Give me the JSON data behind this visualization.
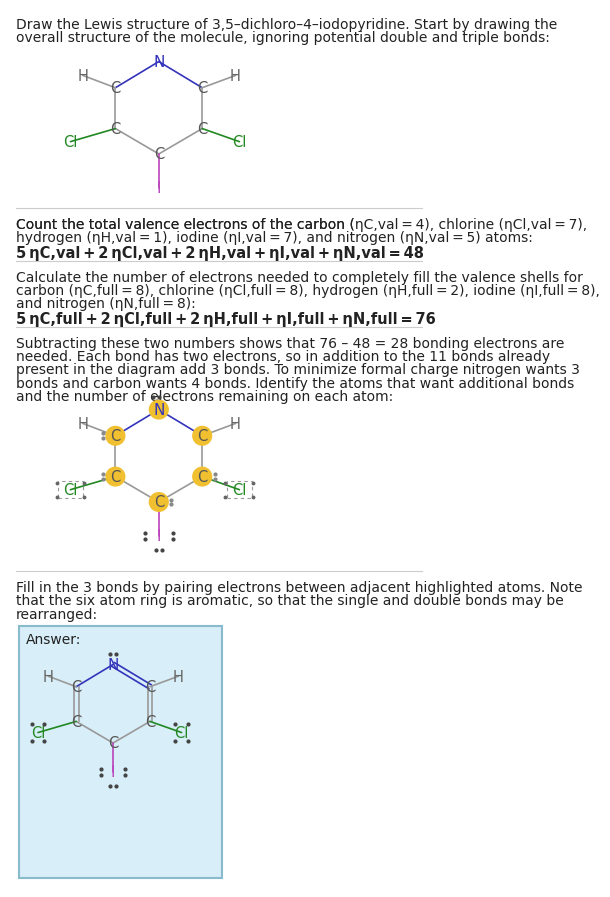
{
  "bg_color": "#ffffff",
  "text_color": "#222222",
  "bond_color": "#999999",
  "N_color": "#3333bb",
  "Cl_color": "#228822",
  "I_color": "#bb44bb",
  "C_color": "#555555",
  "H_color": "#666666",
  "highlight_color": "#f0c030",
  "answer_box_facecolor": "#d8eef8",
  "answer_box_edgecolor": "#88bbcc",
  "divider_color": "#cccccc",
  "dot_color": "#444444",
  "s1_lines": [
    "Draw the Lewis structure of 3,5–dichloro–4–iodopyridine. Start by drawing the",
    "overall structure of the molecule, ignoring potential double and triple bonds:"
  ],
  "s2_lines": [
    "Count the total valence electrons of the carbon (n_{C,val} = 4), chlorine (n_{Cl,val} = 7),",
    "hydrogen (n_{H,val} = 1), iodine (n_{I,val} = 7), and nitrogen (n_{N,val} = 5) atoms:"
  ],
  "s2_formula": "5 n_{C,val} + 2 n_{Cl,val} + 2 n_{H,val} + n_{I,val} + n_{N,val} = 48",
  "s3_lines": [
    "Calculate the number of electrons needed to completely fill the valence shells for",
    "carbon (n_{C,full} = 8), chlorine (n_{Cl,full} = 8), hydrogen (n_{H,full} = 2), iodine (n_{I,full} = 8),",
    "and nitrogen (n_{N,full} = 8):"
  ],
  "s3_formula": "5 n_{C,full} + 2 n_{Cl,full} + 2 n_{H,full} + n_{I,full} + n_{N,full} = 76",
  "s4_lines": [
    "Subtracting these two numbers shows that 76 – 48 = 28 bonding electrons are",
    "needed. Each bond has two electrons, so in addition to the 11 bonds already",
    "present in the diagram add 3 bonds. To minimize formal charge nitrogen wants 3",
    "bonds and carbon wants 4 bonds. Identify the atoms that want additional bonds",
    "and the number of electrons remaining on each atom:"
  ],
  "s5_lines": [
    "Fill in the 3 bonds by pairing electrons between adjacent highlighted atoms. Note",
    "that the six atom ring is aromatic, so that the single and double bonds may be",
    "rearranged:"
  ],
  "answer_label": "Answer:"
}
